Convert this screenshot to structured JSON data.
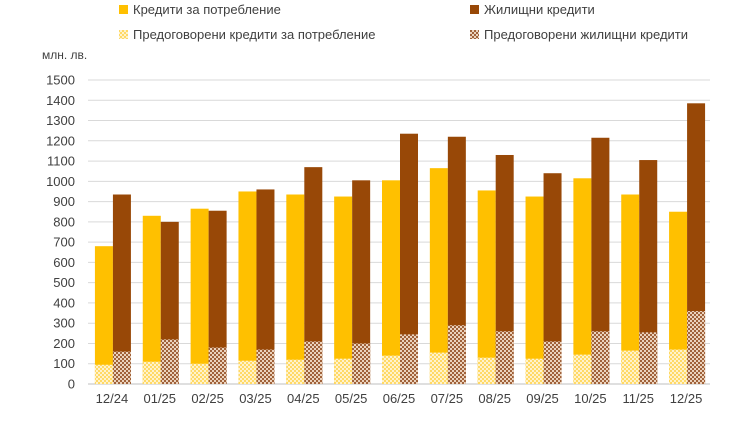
{
  "chart_data": {
    "type": "bar",
    "ylabel": "млн. лв.",
    "ylim": [
      0,
      1500
    ],
    "y_ticks": [
      0,
      100,
      200,
      300,
      400,
      500,
      600,
      700,
      800,
      900,
      1000,
      1100,
      1200,
      1300,
      1400,
      1500
    ],
    "grid": true,
    "legend_position": "top",
    "categories": [
      "12/24",
      "01/25",
      "02/25",
      "03/25",
      "04/25",
      "05/25",
      "06/25",
      "07/25",
      "08/25",
      "09/25",
      "10/25",
      "11/25",
      "12/25"
    ],
    "series": [
      {
        "name": "Кредити за потребление",
        "values": [
          680,
          830,
          865,
          950,
          935,
          925,
          1005,
          1065,
          955,
          925,
          1015,
          935,
          850
        ],
        "color": "#FFC000"
      },
      {
        "name": "Жилищни кредити",
        "values": [
          935,
          800,
          855,
          960,
          1070,
          1005,
          1235,
          1220,
          1130,
          1040,
          1215,
          1105,
          1385
        ],
        "color": "#984807"
      },
      {
        "name": "Предоговорени кредити за потребление",
        "values": [
          95,
          110,
          100,
          115,
          120,
          125,
          140,
          155,
          130,
          125,
          145,
          165,
          170
        ],
        "color": "#FFE699",
        "pattern": "checker-light"
      },
      {
        "name": "Предоговорени жилищни кредити",
        "values": [
          160,
          220,
          180,
          170,
          210,
          200,
          245,
          290,
          260,
          210,
          260,
          255,
          360
        ],
        "color": "#C9A07A",
        "pattern": "checker-brown"
      }
    ]
  }
}
